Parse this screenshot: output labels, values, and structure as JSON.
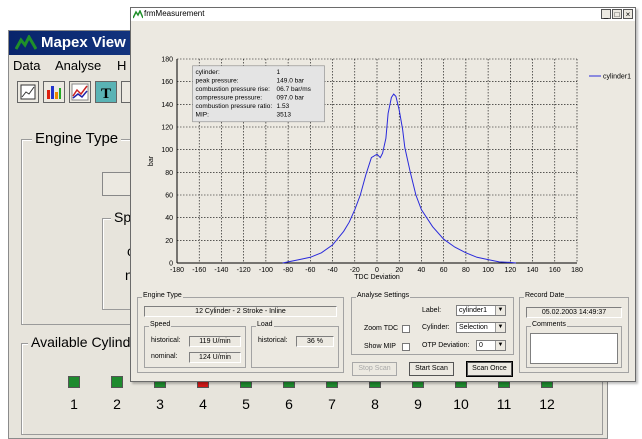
{
  "main_window": {
    "title": "Mapex View",
    "menu": [
      "Data",
      "Analyse",
      "H"
    ],
    "toolbar_icons": [
      "chart-icon",
      "bar-chart-icon",
      "line-chart-icon",
      "text-icon"
    ],
    "engine_type_label": "Engine Type",
    "speed_label": "Spe",
    "cu_label": "cu",
    "no_label": "no",
    "available_cylinders_label": "Available Cylinde",
    "cylinders": [
      {
        "num": "1",
        "color": "#1e8a2e"
      },
      {
        "num": "2",
        "color": "#1e8a2e"
      },
      {
        "num": "3",
        "color": "#1e8a2e"
      },
      {
        "num": "4",
        "color": "#d01818"
      },
      {
        "num": "5",
        "color": "#1e8a2e"
      },
      {
        "num": "6",
        "color": "#1e8a2e"
      },
      {
        "num": "7",
        "color": "#1e8a2e"
      },
      {
        "num": "8",
        "color": "#1e8a2e"
      },
      {
        "num": "9",
        "color": "#1e8a2e"
      },
      {
        "num": "10",
        "color": "#1e8a2e"
      },
      {
        "num": "11",
        "color": "#1e8a2e"
      },
      {
        "num": "12",
        "color": "#1e8a2e"
      }
    ]
  },
  "front_window": {
    "title": "frmMeasurement",
    "buttons": {
      "minimize": "_",
      "maximize": "□",
      "close": "×"
    }
  },
  "chart_data": {
    "type": "line",
    "xlabel": "TDC Deviation",
    "ylabel": "bar",
    "xlim": [
      -180,
      180
    ],
    "ylim": [
      0,
      180
    ],
    "xticks": [
      -180,
      -160,
      -140,
      -120,
      -100,
      -80,
      -60,
      -40,
      -20,
      0,
      20,
      40,
      60,
      80,
      100,
      120,
      140,
      160,
      180
    ],
    "yticks": [
      0,
      20,
      40,
      60,
      80,
      100,
      120,
      140,
      160,
      180
    ],
    "grid": true,
    "legend_placement": "top-right",
    "series": [
      {
        "name": "cylinder1",
        "color": "#2a2adb",
        "x": [
          -85,
          -80,
          -70,
          -60,
          -50,
          -40,
          -30,
          -25,
          -20,
          -15,
          -10,
          -5,
          0,
          3,
          5,
          8,
          10,
          13,
          15,
          17,
          20,
          23,
          25,
          30,
          35,
          40,
          50,
          60,
          70,
          80,
          90,
          100,
          110,
          120,
          125
        ],
        "y": [
          0,
          1,
          3,
          5,
          9,
          16,
          28,
          36,
          47,
          60,
          78,
          93,
          96,
          93,
          97,
          110,
          132,
          146,
          149,
          147,
          135,
          118,
          102,
          80,
          60,
          47,
          32,
          21,
          14,
          9,
          5,
          3,
          1,
          0.5,
          0
        ]
      }
    ],
    "annotation": {
      "rows": [
        [
          "cylinder:",
          "1"
        ],
        [
          "peak pressure:",
          "149.0 bar"
        ],
        [
          "combustion pressure rise:",
          "06.7 bar/ms"
        ],
        [
          "compressure pressure:",
          "097.0 bar"
        ],
        [
          "combustion pressure ratio:",
          "1.53"
        ],
        [
          "MIP:",
          "3513"
        ]
      ]
    }
  },
  "engine_type": {
    "label": "Engine Type",
    "value": "12 Cylinder - 2 Stroke - Inline"
  },
  "speed": {
    "label": "Speed",
    "historical_label": "historical:",
    "historical_value": "119 U/min",
    "nominal_label": "nominal:",
    "nominal_value": "124 U/min"
  },
  "load": {
    "label": "Load",
    "historical_label": "historical:",
    "historical_value": "36 %"
  },
  "analyse_settings": {
    "label": "Analyse Settings",
    "label_label": "Label:",
    "label_value": "cylinder1",
    "zoom_tdc": "Zoom TDC",
    "cylinder_label": "Cylinder:",
    "cylinder_value": "Selection",
    "show_mip": "Show MIP",
    "otp_label": "OTP Deviation:",
    "otp_value": "0"
  },
  "record_date": {
    "label": "Record Date",
    "value": "05.02.2003 14:49:37",
    "comments_label": "Comments"
  },
  "action_buttons": {
    "stop": "Stop Scan",
    "start": "Start Scan",
    "once": "Scan Once"
  }
}
